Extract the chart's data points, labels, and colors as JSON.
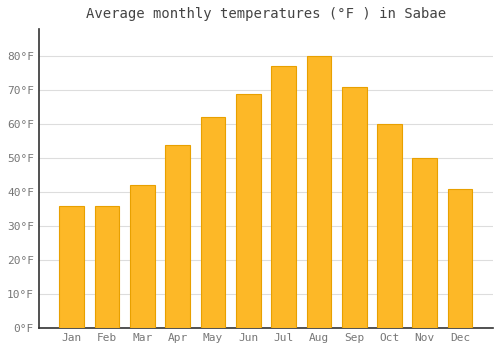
{
  "title": "Average monthly temperatures (°F ) in Sabae",
  "months": [
    "Jan",
    "Feb",
    "Mar",
    "Apr",
    "May",
    "Jun",
    "Jul",
    "Aug",
    "Sep",
    "Oct",
    "Nov",
    "Dec"
  ],
  "values": [
    36,
    36,
    42,
    54,
    62,
    69,
    77,
    80,
    71,
    60,
    50,
    41
  ],
  "bar_color": "#FDB827",
  "bar_edge_color": "#E8A000",
  "background_color": "#FFFFFF",
  "grid_color": "#DDDDDD",
  "yticks": [
    0,
    10,
    20,
    30,
    40,
    50,
    60,
    70,
    80
  ],
  "ytick_labels": [
    "0°F",
    "10°F",
    "20°F",
    "30°F",
    "40°F",
    "50°F",
    "60°F",
    "70°F",
    "80°F"
  ],
  "ylim": [
    0,
    88
  ],
  "title_fontsize": 10,
  "tick_fontsize": 8,
  "title_color": "#444444",
  "tick_color": "#777777",
  "font_family": "monospace",
  "bar_width": 0.7,
  "left_spine_color": "#333333"
}
